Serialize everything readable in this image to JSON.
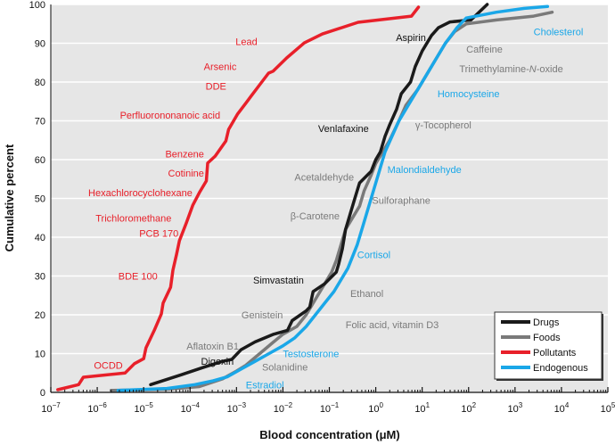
{
  "chart_data": {
    "type": "line",
    "title": "",
    "xlabel": "Blood concentration (μM)",
    "ylabel": "Cumulative percent",
    "xscale": "log",
    "xlim_log10": [
      -7,
      5
    ],
    "ylim": [
      0,
      100
    ],
    "grid": "horizontal",
    "legend_position": "bottom-right",
    "background_color": "#e6e6e6",
    "x_ticks": [
      {
        "exp": -7,
        "base": "10",
        "sup": "−7"
      },
      {
        "exp": -6,
        "base": "10",
        "sup": "−6"
      },
      {
        "exp": -5,
        "base": "10",
        "sup": "−5"
      },
      {
        "exp": -4,
        "base": "10",
        "sup": "−4"
      },
      {
        "exp": -3,
        "base": "10",
        "sup": "−3"
      },
      {
        "exp": -2,
        "base": "10",
        "sup": "−2"
      },
      {
        "exp": -1,
        "base": "10",
        "sup": "−1"
      },
      {
        "exp": 0,
        "base": "10",
        "sup": "0"
      },
      {
        "exp": 1,
        "base": "10",
        "sup": "1"
      },
      {
        "exp": 2,
        "base": "10",
        "sup": "2"
      },
      {
        "exp": 3,
        "base": "10",
        "sup": "3"
      },
      {
        "exp": 4,
        "base": "10",
        "sup": "4"
      },
      {
        "exp": 5,
        "base": "10",
        "sup": "5"
      }
    ],
    "y_ticks": [
      0,
      10,
      20,
      30,
      40,
      50,
      60,
      70,
      80,
      90,
      100
    ],
    "series": [
      {
        "name": "Drugs",
        "color": "#1a1a1a",
        "points_log10x_pct": [
          [
            -4.85,
            2
          ],
          [
            -4.2,
            4.5
          ],
          [
            -3.7,
            6.5
          ],
          [
            -3.3,
            8
          ],
          [
            -3.1,
            8.5
          ],
          [
            -2.9,
            11
          ],
          [
            -2.6,
            13
          ],
          [
            -2.2,
            15
          ],
          [
            -1.9,
            16
          ],
          [
            -1.8,
            18.5
          ],
          [
            -1.5,
            21
          ],
          [
            -1.42,
            22
          ],
          [
            -1.35,
            26
          ],
          [
            -1.1,
            28
          ],
          [
            -0.85,
            31
          ],
          [
            -0.8,
            33
          ],
          [
            -0.72,
            37
          ],
          [
            -0.65,
            42
          ],
          [
            -0.6,
            44
          ],
          [
            -0.55,
            46
          ],
          [
            -0.45,
            50
          ],
          [
            -0.35,
            54
          ],
          [
            -0.1,
            57
          ],
          [
            0,
            60
          ],
          [
            0.1,
            62
          ],
          [
            0.2,
            66
          ],
          [
            0.3,
            69
          ],
          [
            0.45,
            73
          ],
          [
            0.55,
            77
          ],
          [
            0.75,
            80
          ],
          [
            0.85,
            84
          ],
          [
            1.0,
            88
          ],
          [
            1.2,
            92
          ],
          [
            1.35,
            94
          ],
          [
            1.6,
            95.5
          ],
          [
            2.05,
            96
          ],
          [
            2.4,
            100
          ]
        ]
      },
      {
        "name": "Foods",
        "color": "#7a7a7a",
        "points_log10x_pct": [
          [
            -5.7,
            0.5
          ],
          [
            -4.5,
            0.8
          ],
          [
            -3.8,
            1.5
          ],
          [
            -3.3,
            3.5
          ],
          [
            -3.0,
            5.5
          ],
          [
            -2.8,
            7
          ],
          [
            -2.5,
            10
          ],
          [
            -2.2,
            13
          ],
          [
            -2.0,
            15
          ],
          [
            -1.7,
            17
          ],
          [
            -1.5,
            20
          ],
          [
            -1.3,
            24
          ],
          [
            -1.1,
            28
          ],
          [
            -0.95,
            31
          ],
          [
            -0.85,
            34
          ],
          [
            -0.75,
            38
          ],
          [
            -0.65,
            42
          ],
          [
            -0.5,
            45
          ],
          [
            -0.35,
            48
          ],
          [
            -0.25,
            52
          ],
          [
            -0.1,
            56
          ],
          [
            0,
            59
          ],
          [
            0.15,
            62
          ],
          [
            0.3,
            65
          ],
          [
            0.5,
            70
          ],
          [
            0.65,
            74
          ],
          [
            0.9,
            78
          ],
          [
            1.1,
            82
          ],
          [
            1.3,
            86
          ],
          [
            1.5,
            90
          ],
          [
            1.7,
            93
          ],
          [
            1.95,
            95
          ],
          [
            2.6,
            96
          ],
          [
            3.4,
            97
          ],
          [
            3.8,
            98
          ]
        ]
      },
      {
        "name": "Pollutants",
        "color": "#e8202a",
        "points_log10x_pct": [
          [
            -6.85,
            0.7
          ],
          [
            -6.4,
            2
          ],
          [
            -6.3,
            3.9
          ],
          [
            -5.4,
            5
          ],
          [
            -5.2,
            7.4
          ],
          [
            -5.0,
            8.7
          ],
          [
            -4.95,
            11.5
          ],
          [
            -4.77,
            16
          ],
          [
            -4.62,
            20.2
          ],
          [
            -4.58,
            23
          ],
          [
            -4.42,
            27.1
          ],
          [
            -4.37,
            31.5
          ],
          [
            -4.29,
            35.6
          ],
          [
            -4.23,
            39.1
          ],
          [
            -4.08,
            43.7
          ],
          [
            -3.94,
            48.3
          ],
          [
            -3.79,
            51.7
          ],
          [
            -3.65,
            54.5
          ],
          [
            -3.62,
            59.1
          ],
          [
            -3.46,
            60.9
          ],
          [
            -3.23,
            64.8
          ],
          [
            -3.17,
            67.8
          ],
          [
            -2.98,
            71.7
          ],
          [
            -2.79,
            74.7
          ],
          [
            -2.69,
            76.3
          ],
          [
            -2.5,
            79.3
          ],
          [
            -2.31,
            82.3
          ],
          [
            -2.21,
            82.8
          ],
          [
            -1.92,
            86.2
          ],
          [
            -1.54,
            90.1
          ],
          [
            -1.15,
            92.4
          ],
          [
            -0.38,
            95.4
          ],
          [
            0.77,
            97
          ],
          [
            0.92,
            99.3
          ]
        ]
      },
      {
        "name": "Endogenous",
        "color": "#1aa7e8",
        "points_log10x_pct": [
          [
            -5.55,
            0.5
          ],
          [
            -4.5,
            1
          ],
          [
            -3.9,
            2
          ],
          [
            -3.5,
            3
          ],
          [
            -3.2,
            4
          ],
          [
            -2.9,
            6
          ],
          [
            -2.6,
            8
          ],
          [
            -2.3,
            10
          ],
          [
            -2.0,
            12
          ],
          [
            -1.75,
            14
          ],
          [
            -1.5,
            17
          ],
          [
            -1.3,
            20
          ],
          [
            -1.1,
            23
          ],
          [
            -0.9,
            26
          ],
          [
            -0.75,
            29
          ],
          [
            -0.6,
            32
          ],
          [
            -0.5,
            35
          ],
          [
            -0.4,
            38
          ],
          [
            -0.3,
            42
          ],
          [
            -0.2,
            46
          ],
          [
            -0.1,
            50
          ],
          [
            0,
            54
          ],
          [
            0.1,
            58
          ],
          [
            0.2,
            62
          ],
          [
            0.35,
            66
          ],
          [
            0.5,
            70
          ],
          [
            0.7,
            74
          ],
          [
            0.9,
            78
          ],
          [
            1.1,
            82
          ],
          [
            1.3,
            86
          ],
          [
            1.5,
            90
          ],
          [
            1.75,
            94
          ],
          [
            1.95,
            96.5
          ],
          [
            2.6,
            98
          ],
          [
            3.2,
            99
          ],
          [
            3.7,
            99.5
          ]
        ]
      }
    ],
    "annotations": [
      {
        "text": "Lead",
        "series": "Pollutants",
        "log10x": -2.55,
        "pct": 90.5,
        "anchor": "end"
      },
      {
        "text": "Arsenic",
        "series": "Pollutants",
        "log10x": -3.0,
        "pct": 84,
        "anchor": "end"
      },
      {
        "text": "DDE",
        "series": "Pollutants",
        "log10x": -3.22,
        "pct": 79,
        "anchor": "end"
      },
      {
        "text": "Perfluorononanoic acid",
        "series": "Pollutants",
        "log10x": -3.35,
        "pct": 71.5,
        "anchor": "end"
      },
      {
        "text": "Benzene",
        "series": "Pollutants",
        "log10x": -3.7,
        "pct": 61.5,
        "anchor": "end"
      },
      {
        "text": "Cotinine",
        "series": "Pollutants",
        "log10x": -3.7,
        "pct": 56.5,
        "anchor": "end"
      },
      {
        "text": "Hexachlorocyclohexane",
        "series": "Pollutants",
        "log10x": -3.95,
        "pct": 51.5,
        "anchor": "end"
      },
      {
        "text": "Trichloromethane",
        "series": "Pollutants",
        "log10x": -4.4,
        "pct": 45,
        "anchor": "end"
      },
      {
        "text": "PCB 170",
        "series": "Pollutants",
        "log10x": -4.25,
        "pct": 41,
        "anchor": "end"
      },
      {
        "text": "BDE 100",
        "series": "Pollutants",
        "log10x": -4.7,
        "pct": 30,
        "anchor": "end"
      },
      {
        "text": "OCDD",
        "series": "Pollutants",
        "log10x": -5.45,
        "pct": 7,
        "anchor": "end"
      },
      {
        "text": "Aspirin",
        "series": "Drugs",
        "log10x": 1.08,
        "pct": 91.5,
        "anchor": "end"
      },
      {
        "text": "Venlafaxine",
        "series": "Drugs",
        "log10x": -0.15,
        "pct": 68,
        "anchor": "end"
      },
      {
        "text": "Simvastatin",
        "series": "Drugs",
        "log10x": -1.55,
        "pct": 29,
        "anchor": "end"
      },
      {
        "text": "Digoxin",
        "series": "Drugs",
        "log10x": -3.06,
        "pct": 8,
        "anchor": "end"
      },
      {
        "text": "Caffeine",
        "series": "Foods",
        "log10x": 1.95,
        "pct": 88.5,
        "anchor": "start"
      },
      {
        "text": "Trimethylamine-N-oxide",
        "series": "Foods",
        "log10x": 1.8,
        "pct": 83.5,
        "anchor": "start",
        "italic_part": "N"
      },
      {
        "text": "γ-Tocopherol",
        "series": "Foods",
        "log10x": 0.85,
        "pct": 69,
        "anchor": "start"
      },
      {
        "text": "Acetaldehyde",
        "series": "Foods",
        "log10x": -0.47,
        "pct": 55.5,
        "anchor": "end",
        "leader": true
      },
      {
        "text": "Sulforaphane",
        "series": "Foods",
        "log10x": -0.08,
        "pct": 49.5,
        "anchor": "start"
      },
      {
        "text": "β-Carotene",
        "series": "Foods",
        "log10x": -0.78,
        "pct": 45.5,
        "anchor": "end"
      },
      {
        "text": "Ethanol",
        "series": "Foods",
        "log10x": -0.55,
        "pct": 25.5,
        "anchor": "start"
      },
      {
        "text": "Genistein",
        "series": "Foods",
        "log10x": -2.0,
        "pct": 20,
        "anchor": "end",
        "leader": true
      },
      {
        "text": "Folic acid, vitamin D3",
        "series": "Foods",
        "log10x": -0.65,
        "pct": 17.5,
        "anchor": "start"
      },
      {
        "text": "Aflatoxin B1",
        "series": "Foods",
        "log10x": -2.95,
        "pct": 12,
        "anchor": "end",
        "leader": true
      },
      {
        "text": "Solanidine",
        "series": "Foods",
        "log10x": -2.45,
        "pct": 6.5,
        "anchor": "start"
      },
      {
        "text": "Cholesterol",
        "series": "Endogenous",
        "log10x": 3.4,
        "pct": 93,
        "anchor": "start",
        "leader": true
      },
      {
        "text": "Homocysteine",
        "series": "Endogenous",
        "log10x": 1.33,
        "pct": 77,
        "anchor": "start"
      },
      {
        "text": "Malondialdehyde",
        "series": "Endogenous",
        "log10x": 0.25,
        "pct": 57.5,
        "anchor": "start"
      },
      {
        "text": "Cortisol",
        "series": "Endogenous",
        "log10x": -0.4,
        "pct": 35.5,
        "anchor": "start"
      },
      {
        "text": "Testosterone",
        "series": "Endogenous",
        "log10x": -2.0,
        "pct": 10,
        "anchor": "start"
      },
      {
        "text": "Estradiol",
        "series": "Endogenous",
        "log10x": -2.8,
        "pct": 2,
        "anchor": "start",
        "leader": true
      }
    ]
  }
}
